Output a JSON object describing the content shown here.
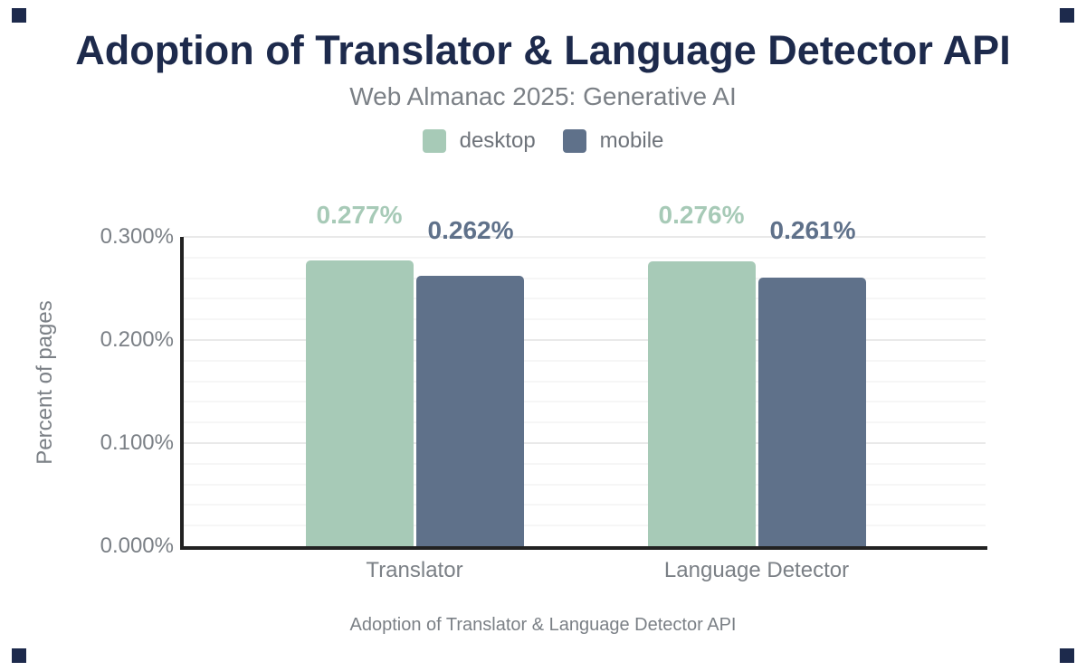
{
  "chart_data": {
    "type": "bar",
    "title": "Adoption of Translator & Language Detector API",
    "subtitle": "Web Almanac 2025: Generative AI",
    "categories": [
      "Translator",
      "Language Detector"
    ],
    "series": [
      {
        "name": "desktop",
        "color": "#a7cab7",
        "values": [
          0.277,
          0.276
        ],
        "labels": [
          "0.277%",
          "0.276%"
        ]
      },
      {
        "name": "mobile",
        "color": "#5f718a",
        "values": [
          0.262,
          0.261
        ],
        "labels": [
          "0.262%",
          "0.261%"
        ]
      }
    ],
    "xlabel": "Adoption of Translator & Language Detector API",
    "ylabel": "Percent of pages",
    "ylim": [
      0,
      0.3
    ],
    "yticks": [
      "0.000%",
      "0.100%",
      "0.200%",
      "0.300%"
    ],
    "grid": {
      "major_step_pct": 0.1,
      "minor_step_pct": 0.02,
      "orientation": "horizontal"
    },
    "legend_position": "top-center"
  },
  "colors": {
    "background": "#ffffff",
    "title_text": "#1d2a4c",
    "muted_text": "#7b8086",
    "legend_text": "#6e737a",
    "axis_line": "#222222",
    "gridline_major": "#e9e9e9",
    "gridline_minor": "#f6f6f6",
    "corner_mark": "#1d2a4c"
  }
}
